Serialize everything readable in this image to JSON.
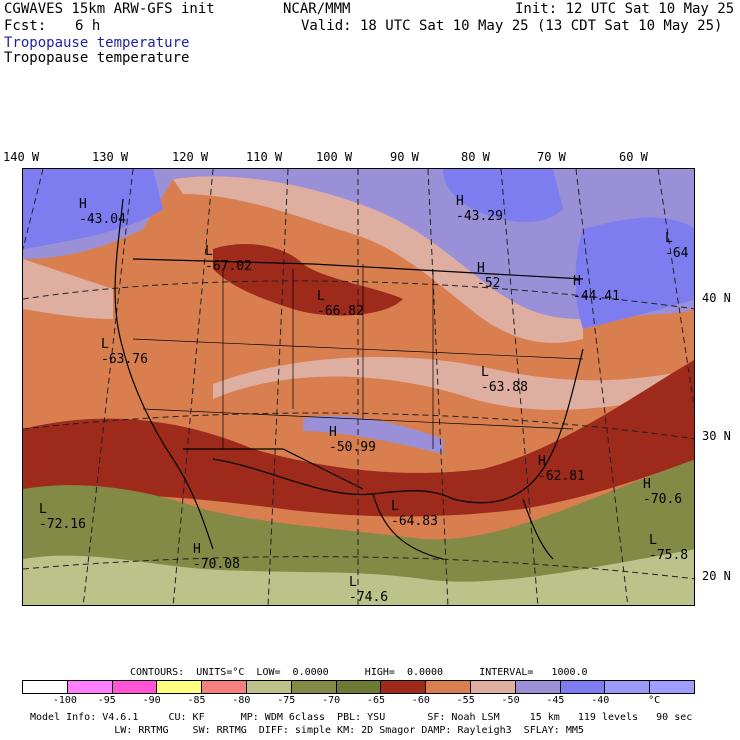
{
  "header": {
    "model": "CGWAVES 15km ARW-GFS init",
    "org": "NCAR/MMM",
    "init": "Init: 12 UTC Sat 10 May 25",
    "fcst_label": "Fcst:",
    "fcst_value": "6 h",
    "valid": "Valid: 18 UTC Sat 10 May 25 (13 CDT Sat 10 May 25)",
    "field_title_1": "Tropopause temperature",
    "field_title_2": "Tropopause temperature"
  },
  "axes": {
    "lon_labels": [
      "140 W",
      "130 W",
      "120 W",
      "110 W",
      "100 W",
      "90 W",
      "80 W",
      "70 W",
      "60 W"
    ],
    "lat_labels": [
      "40 N",
      "30 N",
      "20 N"
    ]
  },
  "map_labels": [
    {
      "letter": "H",
      "value": "-43.04"
    },
    {
      "letter": "L",
      "value": "-67.02"
    },
    {
      "letter": "H",
      "value": "-43.29"
    },
    {
      "letter": "H",
      "value": "-52"
    },
    {
      "letter": "H",
      "value": "-44.41"
    },
    {
      "letter": "L",
      "value": "-64"
    },
    {
      "letter": "L",
      "value": "-66.82"
    },
    {
      "letter": "L",
      "value": "-63.76"
    },
    {
      "letter": "L",
      "value": "-63.88"
    },
    {
      "letter": "H",
      "value": "-50.99"
    },
    {
      "letter": "H",
      "value": "-62.81"
    },
    {
      "letter": "H",
      "value": "-70.6"
    },
    {
      "letter": "L",
      "value": "-72.16"
    },
    {
      "letter": "H",
      "value": "-70.08"
    },
    {
      "letter": "L",
      "value": "-64.83"
    },
    {
      "letter": "L",
      "value": "-75.8"
    },
    {
      "letter": "L",
      "value": "-74.6"
    }
  ],
  "contours": {
    "text": "CONTOURS:  UNITS=°C  LOW=  0.0000      HIGH=  0.0000      INTERVAL=   1000.0"
  },
  "colorbar": {
    "colors": [
      "#ffffff",
      "#ff7fff",
      "#ff55d4",
      "#ffff80",
      "#f58080",
      "#bcc28a",
      "#838a45",
      "#6e7a32",
      "#9e2a1c",
      "#d97f4f",
      "#deafa0",
      "#9a90d8",
      "#7d7df0",
      "#9a9af8",
      "#9e9eff"
    ],
    "labels": [
      "-100",
      "-95",
      "-90",
      "-85",
      "-80",
      "-75",
      "-70",
      "-65",
      "-60",
      "-55",
      "-50",
      "-45",
      "-40",
      "°C"
    ]
  },
  "footer": {
    "line1": "Model Info: V4.6.1     CU: KF      MP: WDM 6class  PBL: YSU       SF: Noah LSM     15 km   119 levels   90 sec",
    "line2": "              LW: RRTMG    SW: RRTMG  DIFF: simple KM: 2D Smagor DAMP: Rayleigh3  SFLAY: MM5"
  }
}
